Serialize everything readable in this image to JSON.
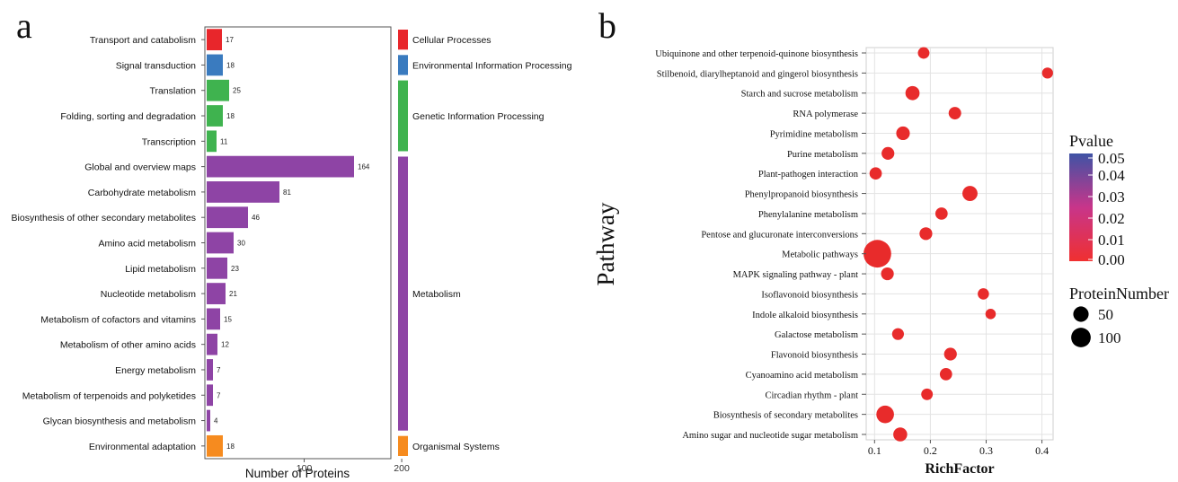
{
  "panels": {
    "a": {
      "letter": "a"
    },
    "b": {
      "letter": "b"
    }
  },
  "chart_data": [
    {
      "panel": "a",
      "type": "bar",
      "orientation": "horizontal",
      "xlabel": "Number of Proteins",
      "ylabel": "",
      "xlim": [
        0,
        230
      ],
      "xticks": [
        100,
        200
      ],
      "grid": false,
      "categories": [
        "Transport and catabolism",
        "Signal transduction",
        "Translation",
        "Folding, sorting and degradation",
        "Transcription",
        "Global and overview maps",
        "Carbohydrate metabolism",
        "Biosynthesis of other secondary metabolites",
        "Amino acid metabolism",
        "Lipid metabolism",
        "Nucleotide metabolism",
        "Metabolism of cofactors and vitamins",
        "Metabolism of other amino acids",
        "Energy metabolism",
        "Metabolism of terpenoids and polyketides",
        "Glycan biosynthesis and metabolism",
        "Environmental adaptation"
      ],
      "values": [
        17,
        18,
        25,
        18,
        11,
        164,
        81,
        46,
        30,
        23,
        21,
        15,
        12,
        7,
        7,
        4,
        18
      ],
      "bar_group": [
        0,
        1,
        2,
        2,
        2,
        3,
        3,
        3,
        3,
        3,
        3,
        3,
        3,
        3,
        3,
        3,
        4
      ],
      "groups": [
        {
          "name": "Cellular Processes",
          "color": "#e8262b",
          "first": 0,
          "last": 0
        },
        {
          "name": "Environmental Information Processing",
          "color": "#3a7bbf",
          "first": 1,
          "last": 1
        },
        {
          "name": "Genetic Information Processing",
          "color": "#3fb34f",
          "first": 2,
          "last": 4
        },
        {
          "name": "Metabolism",
          "color": "#8e44a5",
          "first": 5,
          "last": 15
        },
        {
          "name": "Organismal Systems",
          "color": "#f68b1f",
          "first": 16,
          "last": 16
        }
      ]
    },
    {
      "panel": "b",
      "type": "scatter",
      "xlabel": "RichFactor",
      "ylabel": "Pathway",
      "xlim": [
        0.085,
        0.42
      ],
      "xticks": [
        0.1,
        0.2,
        0.3,
        0.4
      ],
      "xtick_labels": [
        "0.1",
        "0.2",
        "0.3",
        "0.4"
      ],
      "grid": true,
      "categories": [
        "Ubiquinone and other terpenoid-quinone biosynthesis",
        "Stilbenoid, diarylheptanoid and gingerol biosynthesis",
        "Starch and sucrose metabolism",
        "RNA polymerase",
        "Pyrimidine metabolism",
        "Purine metabolism",
        "Plant-pathogen interaction",
        "Phenylpropanoid biosynthesis",
        "Phenylalanine metabolism",
        "Pentose and glucuronate interconversions",
        "Metabolic pathways",
        "MAPK signaling pathway - plant",
        "Isoflavonoid biosynthesis",
        "Indole alkaloid biosynthesis",
        "Galactose metabolism",
        "Flavonoid biosynthesis",
        "Cyanoamino acid metabolism",
        "Circadian rhythm - plant",
        "Biosynthesis of secondary metabolites",
        "Amino sugar and nucleotide sugar metabolism"
      ],
      "rich_factor": [
        0.188,
        0.41,
        0.168,
        0.244,
        0.151,
        0.124,
        0.102,
        0.271,
        0.22,
        0.192,
        0.105,
        0.123,
        0.295,
        0.308,
        0.142,
        0.236,
        0.228,
        0.194,
        0.119,
        0.146
      ],
      "protein_number": [
        10,
        8,
        22,
        14,
        19,
        15,
        13,
        28,
        13,
        15,
        164,
        15,
        9,
        6,
        11,
        15,
        13,
        10,
        46,
        21
      ],
      "pvalue": [
        0.0,
        0.0,
        0.0,
        0.0,
        0.0,
        0.0,
        0.0,
        0.0,
        0.0,
        0.0,
        0.0,
        0.0,
        0.0,
        0.0,
        0.0,
        0.0,
        0.0,
        0.0,
        0.0,
        0.0
      ],
      "colorbar": {
        "title": "Pvalue",
        "ticks": [
          "0.05",
          "0.04",
          "0.03",
          "0.02",
          "0.01",
          "0.00"
        ],
        "color_low": "#f03030",
        "color_mid": "#c8358a",
        "color_high": "#3f53a5"
      },
      "size_legend": {
        "title": "ProteinNumber",
        "entries": [
          {
            "label": "50",
            "value": 50
          },
          {
            "label": "100",
            "value": 100
          }
        ]
      },
      "point_color": "#e82b2b"
    }
  ]
}
